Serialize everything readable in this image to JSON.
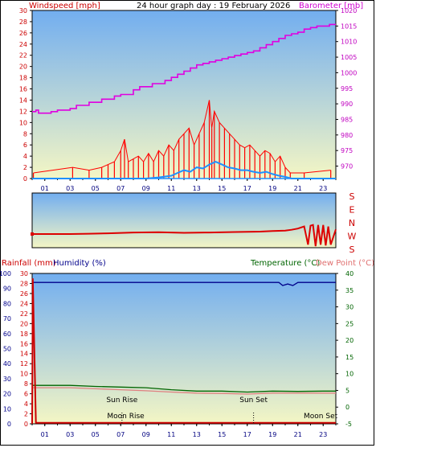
{
  "header": {
    "title": "24 hour graph day : 19 February 2026",
    "left_label": "Windspeed [mph]",
    "right_label": "Barometer [mb]"
  },
  "lower_header": {
    "rainfall_label": "Rainfall (mm)",
    "humidity_label": "Humidity (%)",
    "temperature_label": "Temperature (°C)",
    "dewpoint_label": "Dew Point (°C)"
  },
  "colors": {
    "windspeed": "#ff0000",
    "wind_avg": "#1e90ff",
    "barometer": "#e000e0",
    "wind_dir": "#dd0000",
    "rainfall": "#cc0000",
    "humidity": "#00008b",
    "temperature": "#006400",
    "dewpoint": "#e08080",
    "sky_top": "#72aef0",
    "sky_bottom": "#f4f6c4"
  },
  "chart_data": [
    {
      "type": "line",
      "name": "wind_barometer",
      "x_ticks": [
        "01",
        "03",
        "05",
        "07",
        "09",
        "11",
        "13",
        "15",
        "17",
        "19",
        "21",
        "23"
      ],
      "xlim": [
        0,
        24
      ],
      "y_left_ticks": [
        "0",
        "2",
        "4",
        "6",
        "8",
        "10",
        "12",
        "14",
        "16",
        "18",
        "20",
        "22",
        "24",
        "26",
        "28",
        "30"
      ],
      "ylim_left": [
        0,
        30
      ],
      "y_right_ticks": [
        "970",
        "975",
        "980",
        "985",
        "990",
        "995",
        "1000",
        "1005",
        "1010",
        "1015",
        "1020"
      ],
      "ylim_right": [
        966,
        1020
      ],
      "barometer": {
        "x": [
          0,
          0.3,
          0.5,
          1.5,
          2,
          3,
          3.5,
          4.5,
          5.5,
          6.5,
          7,
          8,
          8.5,
          9.5,
          10.5,
          11,
          11.5,
          12,
          12.5,
          13,
          13.5,
          14,
          14.5,
          15,
          15.5,
          16,
          16.5,
          17,
          17.5,
          18,
          18.5,
          19,
          19.5,
          20,
          20.5,
          21,
          21.5,
          22,
          22.5,
          23,
          23.5,
          24
        ],
        "y": [
          987.5,
          988,
          987,
          987.5,
          988,
          988.5,
          989.5,
          990.5,
          991.5,
          992.5,
          993,
          994.5,
          995.5,
          996.5,
          997.5,
          998.5,
          999.5,
          1000.5,
          1001.5,
          1002.5,
          1003,
          1003.5,
          1004,
          1004.5,
          1005,
          1005.5,
          1006,
          1006.5,
          1007,
          1008,
          1009,
          1010,
          1011,
          1012,
          1012.5,
          1013,
          1014,
          1014.5,
          1015,
          1015,
          1015.5,
          1015.5
        ]
      },
      "wind_avg": {
        "x": [
          0,
          9,
          10,
          11,
          11.5,
          12,
          12.5,
          13,
          13.5,
          14,
          14.5,
          15,
          15.5,
          16,
          16.5,
          17,
          17.5,
          18,
          18.5,
          19,
          19.5,
          20,
          20.5,
          24
        ],
        "y": [
          0,
          0,
          0.2,
          0.5,
          1,
          1.5,
          1.2,
          2,
          1.8,
          2.5,
          3,
          2.5,
          2,
          1.8,
          1.5,
          1.5,
          1.2,
          1,
          1.2,
          0.8,
          0.5,
          0.3,
          0,
          0
        ]
      },
      "wind_gust": {
        "x": [
          0.1,
          3.2,
          4.5,
          5.5,
          6,
          6.5,
          7,
          7.3,
          7.6,
          8,
          8.4,
          8.8,
          9.2,
          9.6,
          10,
          10.4,
          10.8,
          11.2,
          11.6,
          12,
          12.4,
          12.8,
          13.2,
          13.6,
          14,
          14.2,
          14.4,
          14.8,
          15.2,
          15.6,
          16,
          16.4,
          16.8,
          17.2,
          17.6,
          18,
          18.4,
          18.8,
          19.2,
          19.6,
          20,
          20.4,
          21.5,
          23.6
        ],
        "y": [
          1,
          2,
          1.5,
          2,
          2.5,
          3,
          5,
          7,
          3,
          3.5,
          4,
          3,
          4.5,
          3,
          5,
          4,
          6,
          5,
          7,
          8,
          9,
          6,
          8,
          10,
          14,
          9,
          12,
          10,
          9,
          8,
          7,
          6,
          5.5,
          6,
          5,
          4,
          5,
          4.5,
          3,
          4,
          2,
          1,
          1,
          1.5
        ]
      }
    },
    {
      "type": "line",
      "name": "wind_direction",
      "y_ticks": [
        "S",
        "E",
        "N",
        "W",
        "S"
      ],
      "ylim": [
        0,
        360
      ],
      "x": [
        0,
        3,
        4.5,
        6,
        8,
        10,
        12,
        14,
        16,
        18,
        19,
        20,
        20.5,
        21,
        21.5,
        21.8,
        22,
        22.2,
        22.4,
        22.6,
        22.8,
        23,
        23.2,
        23.4,
        23.6,
        24
      ],
      "y": [
        90,
        90,
        92,
        95,
        100,
        102,
        98,
        100,
        103,
        106,
        110,
        112,
        118,
        126,
        140,
        20,
        145,
        150,
        10,
        150,
        20,
        150,
        15,
        140,
        20,
        120
      ]
    },
    {
      "type": "line",
      "name": "rain_humidity_temp",
      "x_ticks": [
        "01",
        "03",
        "05",
        "07",
        "09",
        "11",
        "13",
        "15",
        "17",
        "19",
        "21",
        "23"
      ],
      "xlim": [
        0,
        24
      ],
      "y_humidity_ticks": [
        "0",
        "10",
        "20",
        "30",
        "40",
        "50",
        "60",
        "70",
        "80",
        "90",
        "100"
      ],
      "ylim_humidity": [
        0,
        100
      ],
      "y_rain_ticks": [
        "0",
        "2",
        "4",
        "6",
        "8",
        "10",
        "12",
        "14",
        "16",
        "18",
        "20",
        "22",
        "24",
        "26",
        "28",
        "30"
      ],
      "ylim_rain": [
        0,
        30
      ],
      "y_temp_ticks": [
        "-5",
        "0",
        "5",
        "10",
        "15",
        "20",
        "25",
        "30",
        "35",
        "40"
      ],
      "ylim_temp": [
        -5,
        40
      ],
      "humidity": {
        "x": [
          0,
          19,
          19.5,
          19.8,
          20.2,
          20.6,
          21,
          24
        ],
        "y": [
          94,
          94,
          94,
          92,
          93,
          92,
          94,
          94
        ]
      },
      "temperature": {
        "x": [
          0,
          3,
          5,
          7,
          9,
          11,
          13,
          15,
          17,
          19,
          21,
          23,
          24
        ],
        "y": [
          6.5,
          6.5,
          6.2,
          6,
          5.8,
          5.2,
          4.8,
          4.8,
          4.5,
          4.8,
          4.7,
          4.8,
          4.8
        ]
      },
      "dewpoint": {
        "x": [
          0,
          3,
          5,
          7,
          9,
          11,
          13,
          15,
          17,
          19,
          21,
          23,
          24
        ],
        "y": [
          5.8,
          5.8,
          5.5,
          5.2,
          4.9,
          4.5,
          4.2,
          4.1,
          3.9,
          4.2,
          4.2,
          4.2,
          4.2
        ]
      },
      "rainfall": {
        "x": [
          0,
          0.05,
          0.3,
          24
        ],
        "y": [
          0,
          29,
          0.2,
          0.2
        ]
      },
      "annotations": [
        {
          "text": "Sun Rise",
          "x": 7.1,
          "row": "upper"
        },
        {
          "text": "Sun Set",
          "x": 17.5,
          "row": "upper"
        },
        {
          "text": "Moon Rise",
          "x": 7.4,
          "row": "lower"
        },
        {
          "text": "Moon Set",
          "x": 22.8,
          "row": "lower"
        }
      ],
      "event_lines": [
        7.1,
        17.5
      ]
    }
  ]
}
